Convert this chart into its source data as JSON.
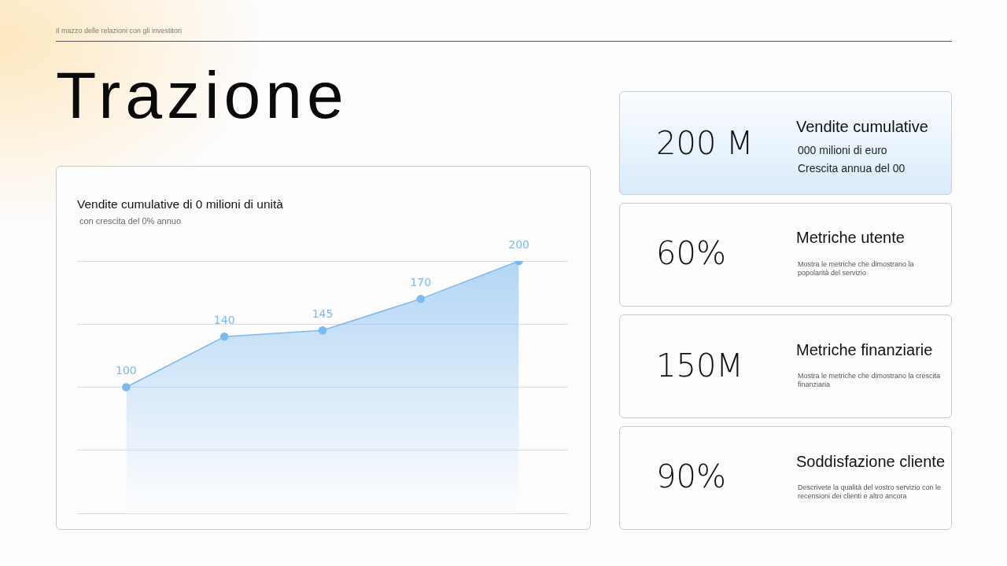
{
  "chart_data": [
    {
      "type": "other",
      "title": "Trazione",
      "annotations": [
        "Il mazzo delle relazioni con gli investitori"
      ]
    },
    {
      "type": "area",
      "title": "Vendite cumulative di 0 milioni di unità",
      "subtitle": "con crescita del 0% annuo",
      "categories": [
        null,
        null,
        null,
        null,
        null
      ],
      "values": [
        100,
        140,
        145,
        170,
        200
      ],
      "color": "#7cb9ee",
      "ylim": [
        0,
        200
      ],
      "yticks": [
        {
          "value": 0,
          "label": null
        },
        {
          "value": 50,
          "label": null
        },
        {
          "value": 100,
          "label": null
        },
        {
          "value": 150,
          "label": null
        },
        {
          "value": 200,
          "label": null
        }
      ],
      "grid": "y",
      "tick_labels": false,
      "data_labels": true,
      "marker": "circle"
    },
    {
      "type": "other",
      "title": "Vendite cumulative",
      "annotations": [
        "200 M",
        "000 milioni di euro",
        "Crescita annua del 00"
      ]
    },
    {
      "type": "other",
      "title": "Metriche utente",
      "annotations": [
        "60%",
        "Mostra le metriche che dimostrano la popolarità del servizio"
      ]
    },
    {
      "type": "other",
      "title": "Metriche finanziarie",
      "annotations": [
        "150M",
        "Mostra le metriche che dimostrano la crescita finanziaria"
      ]
    },
    {
      "type": "other",
      "title": "Soddisfazione cliente",
      "annotations": [
        "90%",
        "Descrivete la qualità del vostro servizio con le recensioni dei clienti e altro ancora"
      ]
    }
  ]
}
